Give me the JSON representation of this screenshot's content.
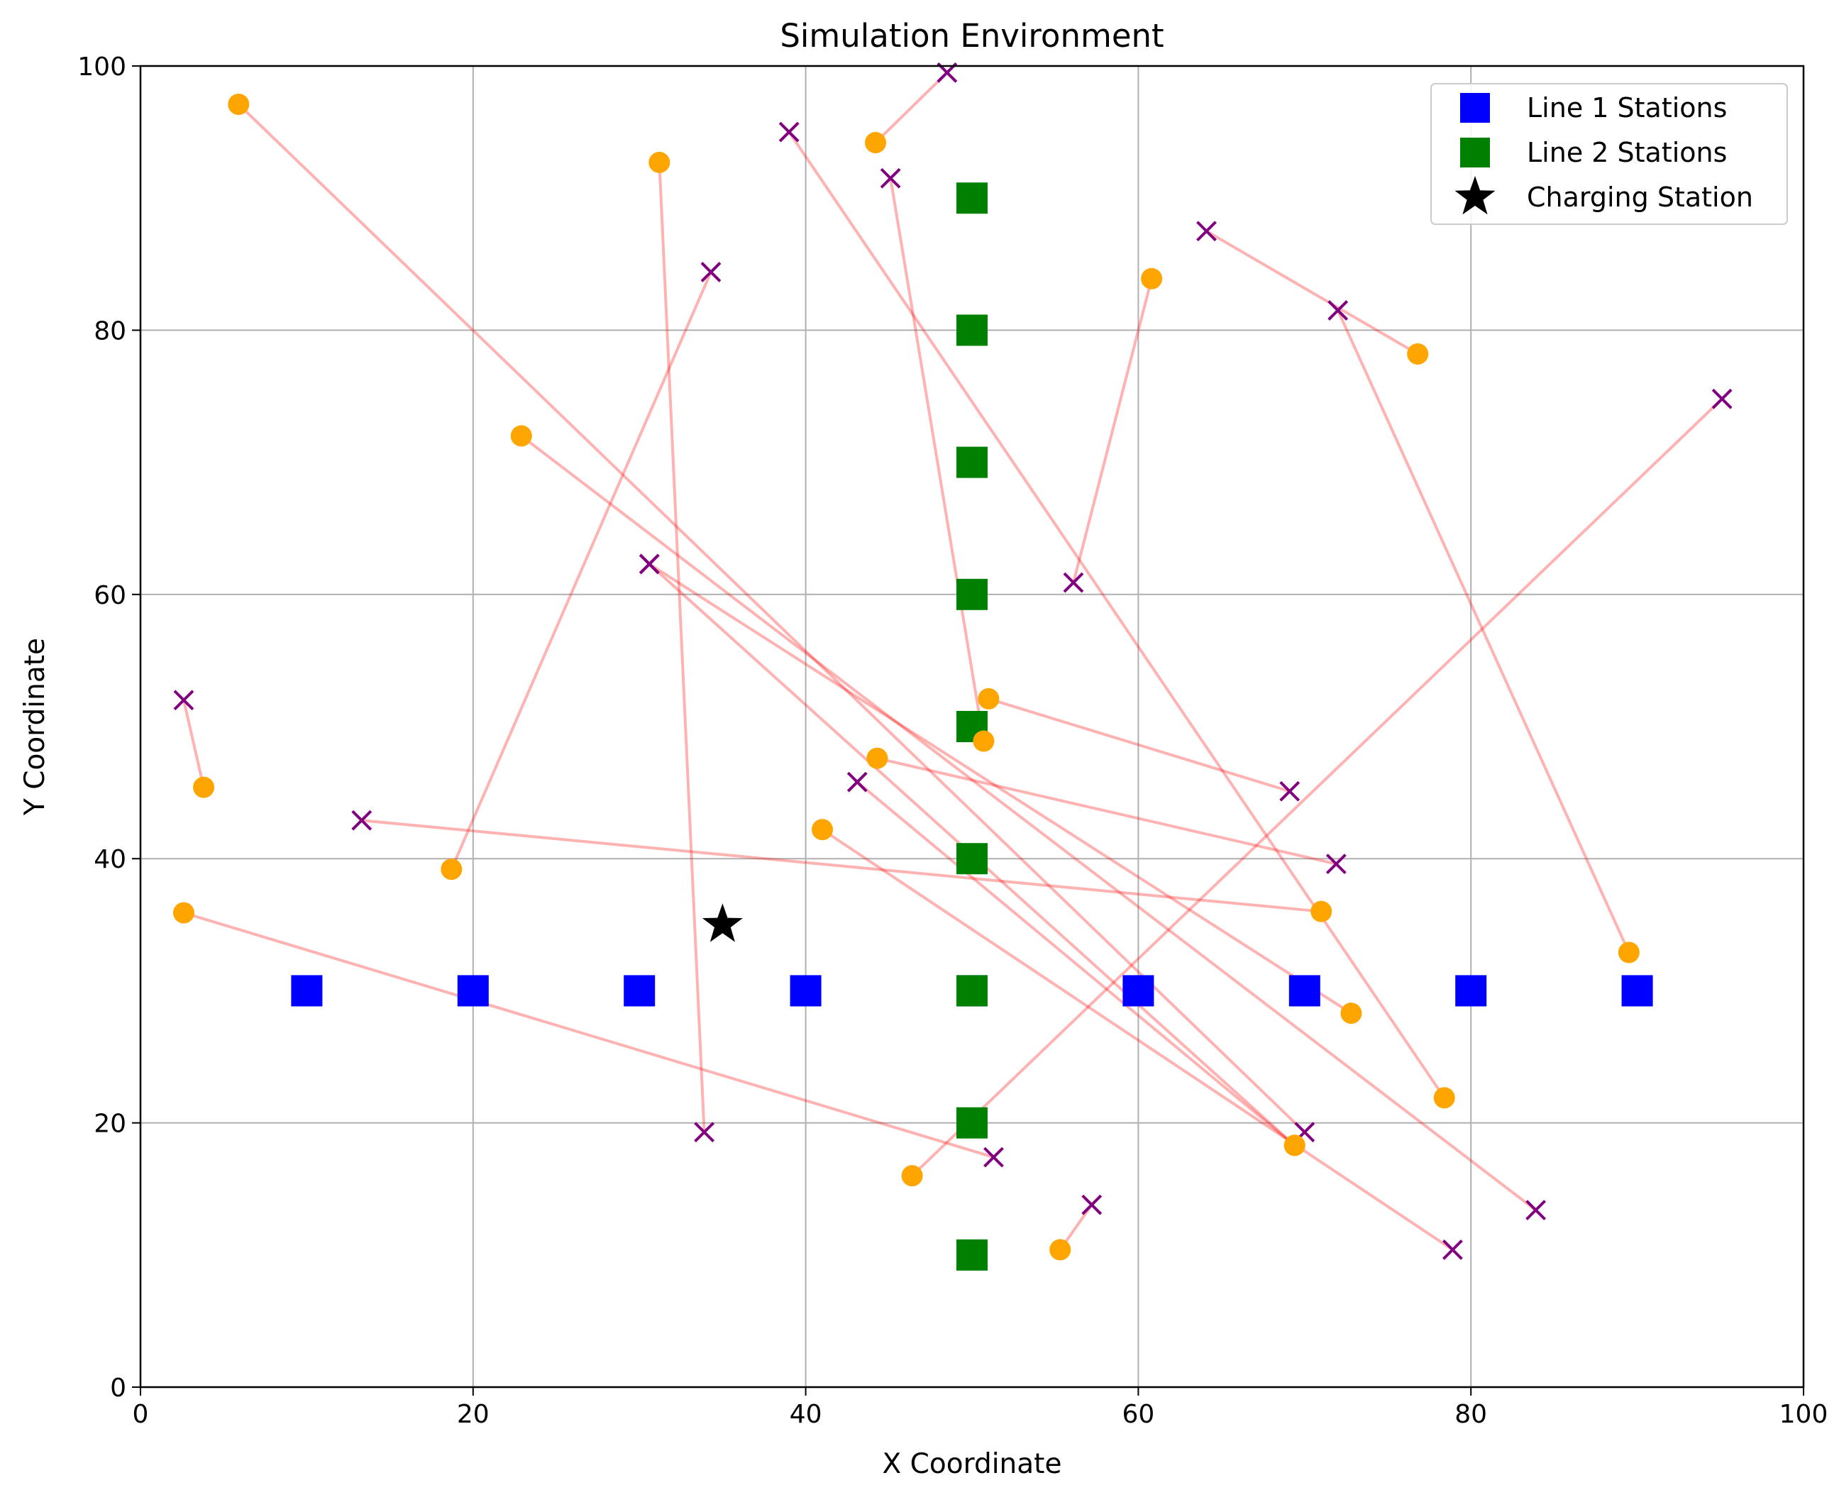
{
  "chart_data": {
    "type": "scatter",
    "title": "Simulation Environment",
    "xlabel": "X Coordinate",
    "ylabel": "Y Coordinate",
    "xlim": [
      0,
      100
    ],
    "ylim": [
      0,
      100
    ],
    "xticks": [
      0,
      20,
      40,
      60,
      80,
      100
    ],
    "yticks": [
      0,
      20,
      40,
      60,
      80,
      100
    ],
    "grid": true,
    "legend_position": "top-right",
    "colors": {
      "line1": "#0000ff",
      "line2": "#008000",
      "charging": "#000000",
      "origin": "#ffa500",
      "destination": "#800080",
      "link": "#ff0000"
    },
    "legend": [
      {
        "key": "line1",
        "label": "Line 1 Stations",
        "marker": "square"
      },
      {
        "key": "line2",
        "label": "Line 2 Stations",
        "marker": "square"
      },
      {
        "key": "charging",
        "label": "Charging Station",
        "marker": "star"
      }
    ],
    "line1_stations": [
      [
        10,
        30
      ],
      [
        20,
        30
      ],
      [
        30,
        30
      ],
      [
        40,
        30
      ],
      [
        50,
        30
      ],
      [
        60,
        30
      ],
      [
        70,
        30
      ],
      [
        80,
        30
      ],
      [
        90,
        30
      ]
    ],
    "line2_stations": [
      [
        50,
        10
      ],
      [
        50,
        20
      ],
      [
        50,
        30
      ],
      [
        50,
        40
      ],
      [
        50,
        50
      ],
      [
        50,
        60
      ],
      [
        50,
        70
      ],
      [
        50,
        80
      ],
      [
        50,
        90
      ]
    ],
    "charging_station": [
      35,
      35
    ],
    "trips": [
      {
        "origin": [
          5.9,
          97.1
        ],
        "destination": [
          70.0,
          19.3
        ]
      },
      {
        "origin": [
          44.2,
          94.2
        ],
        "destination": [
          48.5,
          99.5
        ]
      },
      {
        "origin": [
          31.2,
          92.7
        ],
        "destination": [
          33.9,
          19.3
        ]
      },
      {
        "origin": [
          50.7,
          48.9
        ],
        "destination": [
          45.1,
          91.5
        ]
      },
      {
        "origin": [
          18.7,
          39.2
        ],
        "destination": [
          34.3,
          84.4
        ]
      },
      {
        "origin": [
          60.8,
          83.9
        ],
        "destination": [
          56.1,
          60.9
        ]
      },
      {
        "origin": [
          76.8,
          78.2
        ],
        "destination": [
          64.1,
          87.5
        ]
      },
      {
        "origin": [
          89.5,
          32.9
        ],
        "destination": [
          72.0,
          81.5
        ]
      },
      {
        "origin": [
          78.4,
          21.9
        ],
        "destination": [
          39.0,
          95.0
        ]
      },
      {
        "origin": [
          22.9,
          72.0
        ],
        "destination": [
          83.9,
          13.4
        ]
      },
      {
        "origin": [
          46.4,
          16.0
        ],
        "destination": [
          95.1,
          74.8
        ]
      },
      {
        "origin": [
          69.4,
          18.3
        ],
        "destination": [
          30.6,
          62.3
        ]
      },
      {
        "origin": [
          72.8,
          28.3
        ],
        "destination": [
          30.6,
          62.3
        ]
      },
      {
        "origin": [
          3.8,
          45.4
        ],
        "destination": [
          2.6,
          52.0
        ]
      },
      {
        "origin": [
          71.0,
          36.0
        ],
        "destination": [
          13.3,
          42.9
        ]
      },
      {
        "origin": [
          44.3,
          47.6
        ],
        "destination": [
          71.9,
          39.6
        ]
      },
      {
        "origin": [
          51.0,
          52.1
        ],
        "destination": [
          69.1,
          45.1
        ]
      },
      {
        "origin": [
          41.0,
          42.2
        ],
        "destination": [
          78.9,
          10.4
        ]
      },
      {
        "origin": [
          2.6,
          35.9
        ],
        "destination": [
          51.3,
          17.4
        ]
      },
      {
        "origin": [
          55.3,
          10.4
        ],
        "destination": [
          57.2,
          13.8
        ]
      },
      {
        "origin": [
          69.4,
          18.3
        ],
        "destination": [
          43.1,
          45.8
        ]
      }
    ]
  }
}
